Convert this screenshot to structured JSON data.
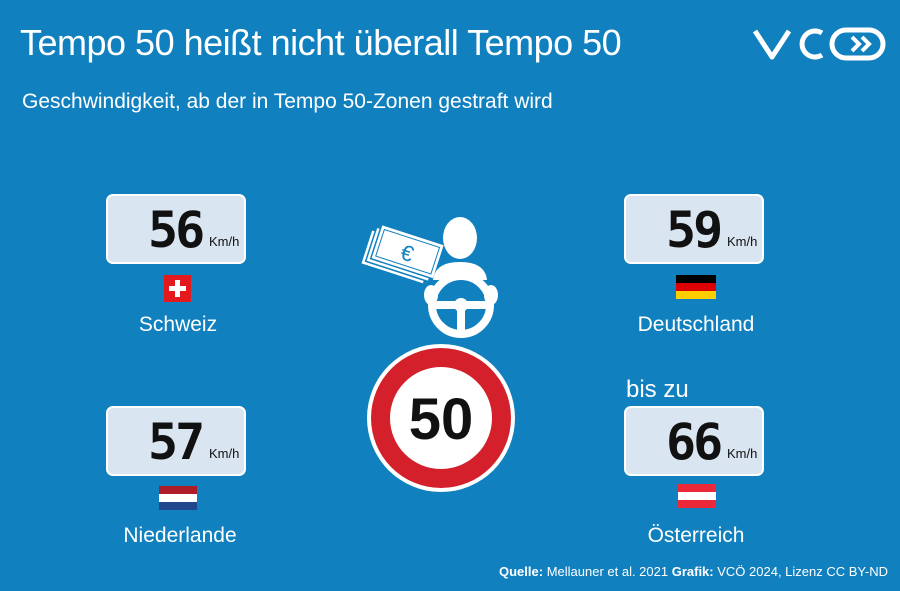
{
  "title": "Tempo 50 heißt nicht überall Tempo 50",
  "subtitle": "Geschwindigkeit, ab der in Tempo 50-Zonen gestraft wird",
  "logo_text": "VCÖ",
  "unit": "Km/h",
  "countries": [
    {
      "name": "Schweiz",
      "speed": "56",
      "flag": "switzerland-flag"
    },
    {
      "name": "Deutschland",
      "speed": "59",
      "flag": "germany-flag"
    },
    {
      "name": "Niederlande",
      "speed": "57",
      "flag": "netherlands-flag"
    },
    {
      "name": "Österreich",
      "speed": "66",
      "flag": "austria-flag",
      "prefix": "bis zu"
    }
  ],
  "sign_value": "50",
  "euro_symbol": "€",
  "source": {
    "label1": "Quelle:",
    "text1": " Mellauner et al. 2021 ",
    "label2": "Grafik:",
    "text2": " VCÖ 2024, Lizenz CC BY-ND"
  },
  "colors": {
    "background": "#1180bf",
    "display": "#d9e5f0",
    "sign_red": "#d3202b"
  },
  "icons": [
    "speedometer-display",
    "money-icon",
    "driver-icon",
    "speed-limit-sign"
  ]
}
